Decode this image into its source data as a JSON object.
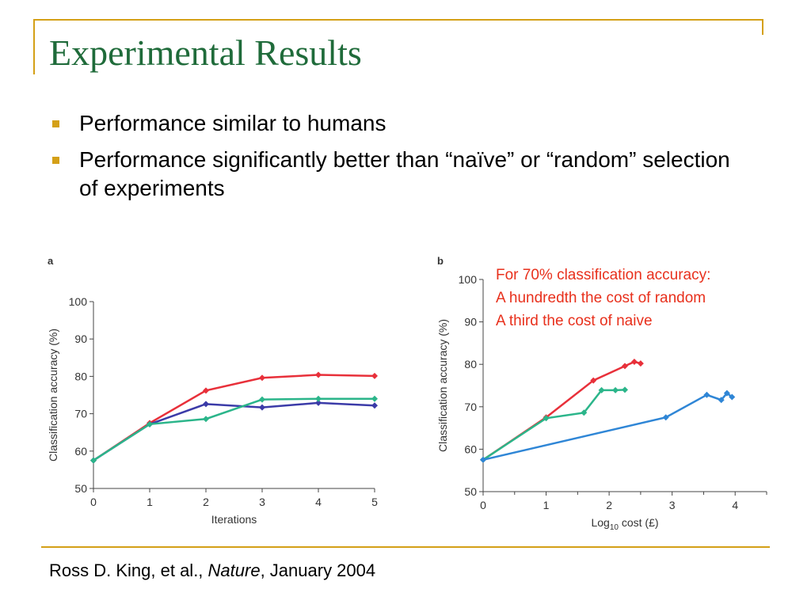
{
  "slide": {
    "title": "Experimental Results",
    "bullets": [
      "Performance similar to humans",
      "Performance significantly better than “naïve” or “random” selection of experiments"
    ],
    "annotation": [
      "For 70% classification accuracy:",
      "A hundredth the cost of random",
      "A third the cost of naive"
    ],
    "citation": {
      "authors": "Ross D. King, et al., ",
      "journal": "Nature",
      "date": ", January 2004"
    },
    "colors": {
      "title": "#1f6b3a",
      "accent": "#d4a017",
      "annotation": "#e8301c"
    }
  },
  "chart_data": [
    {
      "panel_label": "a",
      "type": "line",
      "xlabel": "Iterations",
      "ylabel": "Classification accuracy (%)",
      "xlim": [
        0,
        5
      ],
      "ylim": [
        50,
        100
      ],
      "x_ticks": [
        0,
        1,
        2,
        3,
        4,
        5
      ],
      "y_ticks": [
        50,
        60,
        70,
        80,
        90,
        100
      ],
      "grid": false,
      "series": [
        {
          "color": "#e8303a",
          "x": [
            0,
            1,
            2,
            3,
            4,
            5
          ],
          "y": [
            57.5,
            67.5,
            76.2,
            79.6,
            80.4,
            80.1
          ]
        },
        {
          "color": "#3b3ba8",
          "x": [
            0,
            1,
            2,
            3,
            4,
            5
          ],
          "y": [
            57.5,
            67.2,
            72.6,
            71.7,
            72.9,
            72.2
          ]
        },
        {
          "color": "#2bb58a",
          "x": [
            0,
            1,
            2,
            3,
            4,
            5
          ],
          "y": [
            57.5,
            67.2,
            68.6,
            73.8,
            74.0,
            74.0
          ]
        }
      ]
    },
    {
      "panel_label": "b",
      "type": "line",
      "xlabel_prefix": "Log",
      "xlabel_sub": "10",
      "xlabel_suffix": " cost (£)",
      "ylabel": "Classification accuracy (%)",
      "xlim": [
        0,
        4.5
      ],
      "ylim": [
        50,
        100
      ],
      "x_ticks": [
        0,
        1,
        2,
        3,
        4
      ],
      "y_ticks": [
        50,
        60,
        70,
        80,
        90,
        100
      ],
      "grid": false,
      "series": [
        {
          "color": "#e8303a",
          "x": [
            0,
            1.0,
            1.75,
            2.25,
            2.4,
            2.5
          ],
          "y": [
            57.5,
            67.5,
            76.2,
            79.6,
            80.6,
            80.2
          ]
        },
        {
          "color": "#2bb58a",
          "x": [
            0,
            1.0,
            1.6,
            1.88,
            2.1,
            2.25
          ],
          "y": [
            57.5,
            67.3,
            68.6,
            73.9,
            73.9,
            74.0
          ]
        },
        {
          "color": "#2f86d6",
          "x": [
            0,
            2.9,
            3.55,
            3.78,
            3.87,
            3.95
          ],
          "y": [
            57.5,
            67.5,
            72.8,
            71.6,
            73.2,
            72.3
          ]
        }
      ]
    }
  ]
}
